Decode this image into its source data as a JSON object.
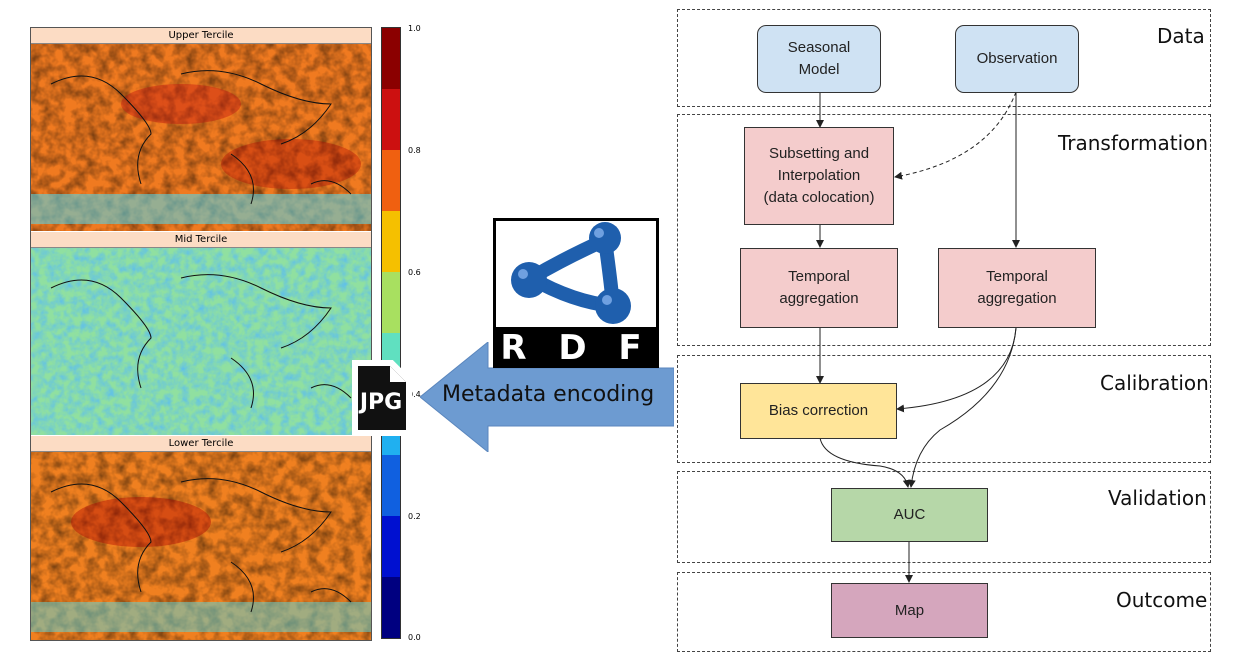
{
  "left_figure": {
    "panels": [
      {
        "title": "Upper Tercile"
      },
      {
        "title": "Mid Tercile"
      },
      {
        "title": "Lower Tercile"
      }
    ],
    "colorbar": {
      "ticks": [
        "1.0",
        "0.8",
        "0.6",
        "0.4",
        "0.2",
        "0.0"
      ],
      "colors": [
        "#8b0000",
        "#cc1010",
        "#f06010",
        "#f5c000",
        "#a8e060",
        "#60e0c0",
        "#20b0f0",
        "#1060e0",
        "#0010d0",
        "#000080"
      ]
    }
  },
  "jpg_icon": {
    "label": "JPG"
  },
  "arrow": {
    "label": "Metadata encoding",
    "color": "#6d9bd1"
  },
  "rdf_logo": {
    "text": "R D F",
    "color": "#1f5fad"
  },
  "workflow": {
    "stages": [
      {
        "label": "Data"
      },
      {
        "label": "Transformation"
      },
      {
        "label": "Calibration"
      },
      {
        "label": "Validation"
      },
      {
        "label": "Outcome"
      }
    ],
    "nodes": {
      "seasonal_model": {
        "line1": "Seasonal",
        "line2": "Model",
        "color": "#cfe2f3"
      },
      "observation": {
        "label": "Observation",
        "color": "#cfe2f3"
      },
      "subsetting": {
        "line1": "Subsetting and",
        "line2": "Interpolation",
        "line3": "(data colocation)",
        "color": "#f4cccc"
      },
      "temporal_aggregation_left": {
        "line1": "Temporal",
        "line2": "aggregation",
        "color": "#f4cccc"
      },
      "temporal_aggregation_right": {
        "line1": "Temporal",
        "line2": "aggregation",
        "color": "#f4cccc"
      },
      "bias_correction": {
        "label": "Bias correction",
        "color": "#ffe599"
      },
      "auc": {
        "label": "AUC",
        "color": "#b6d7a8"
      },
      "map": {
        "label": "Map",
        "color": "#d5a6bd"
      }
    }
  }
}
